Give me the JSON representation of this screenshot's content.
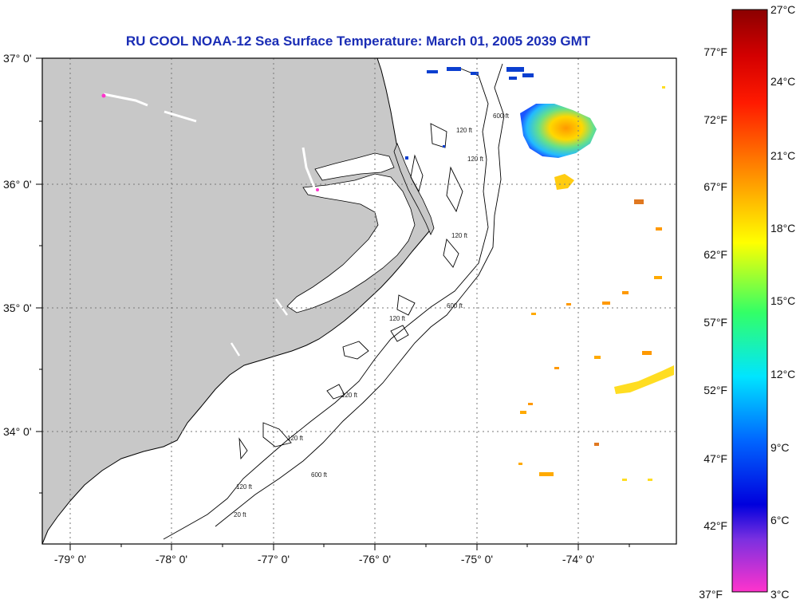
{
  "title": "RU COOL  NOAA-12  Sea Surface Temperature:  March 01, 2005 2039 GMT",
  "colors": {
    "title": "#1a2db5",
    "land": "#c8c8c8",
    "ocean": "#ffffff",
    "grid": "#777777"
  },
  "map": {
    "lon_labels": [
      "-79° 0'",
      "-78° 0'",
      "-77° 0'",
      "-76° 0'",
      "-75° 0'",
      "-74° 0'"
    ],
    "lat_labels": [
      "37° 0'",
      "36° 0'",
      "35° 0'",
      "34° 0'"
    ],
    "depth_labels": [
      "600 ft",
      "120 ft",
      "120 ft",
      "120 ft",
      "600 ft",
      "120 ft",
      "120 ft",
      "600 ft",
      "120 ft",
      "120 ft",
      "20 ft"
    ]
  },
  "colorbar": {
    "celsius_labels": [
      "27°C",
      "24°C",
      "21°C",
      "18°C",
      "15°C",
      "12°C",
      "9°C",
      "6°C",
      "3°C"
    ],
    "fahrenheit_labels": [
      "77°F",
      "72°F",
      "67°F",
      "62°F",
      "57°F",
      "52°F",
      "47°F",
      "42°F",
      "37°F"
    ],
    "gradient_colors": [
      "#8b0000",
      "#ff0000",
      "#ff8c00",
      "#ffff00",
      "#00ff66",
      "#00e5ff",
      "#0055ff",
      "#0000dd",
      "#7b30e0",
      "#ff33cc"
    ]
  }
}
